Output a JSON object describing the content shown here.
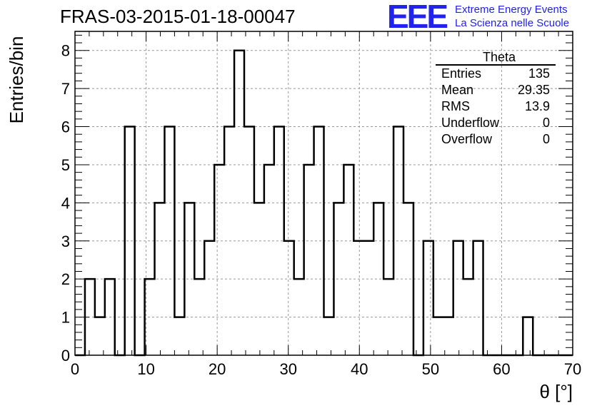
{
  "title": "FRAS-03-2015-01-18-00047",
  "logo": {
    "mark": "EEE",
    "line1": "Extreme Energy Events",
    "line2": "La Scienza nelle Scuole",
    "color": "#2222ee"
  },
  "stats": {
    "name": "Theta",
    "rows": [
      {
        "label": "Entries",
        "value": "135"
      },
      {
        "label": "Mean",
        "value": "29.35"
      },
      {
        "label": "RMS",
        "value": "13.9"
      },
      {
        "label": "Underflow",
        "value": "0"
      },
      {
        "label": "Overflow",
        "value": "0"
      }
    ]
  },
  "chart_data": {
    "type": "histogram",
    "title": "FRAS-03-2015-01-18-00047",
    "xlabel": "θ [°]",
    "ylabel": "Entries/bin",
    "xlim": [
      0,
      70
    ],
    "ylim": [
      0,
      8.5
    ],
    "bin_width": 1.4,
    "bin_start": 0,
    "values": [
      0,
      2,
      1,
      2,
      0,
      6,
      0,
      2,
      4,
      6,
      1,
      4,
      2,
      3,
      5,
      6,
      8,
      6,
      4,
      5,
      6,
      3,
      2,
      5,
      6,
      1,
      4,
      5,
      3,
      3,
      4,
      2,
      6,
      4,
      0,
      3,
      1,
      1,
      3,
      2,
      3,
      0,
      0,
      0,
      0,
      1,
      0,
      0,
      0,
      0
    ],
    "xticks": [
      0,
      10,
      20,
      30,
      40,
      50,
      60,
      70
    ],
    "yticks": [
      0,
      1,
      2,
      3,
      4,
      5,
      6,
      7,
      8
    ],
    "grid": true,
    "line_color": "#000000"
  }
}
